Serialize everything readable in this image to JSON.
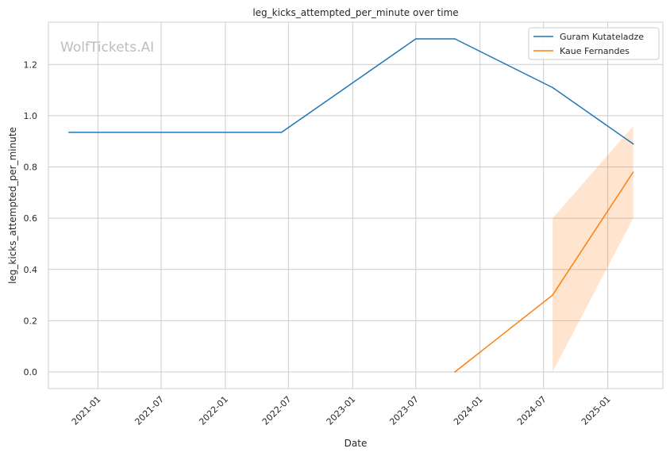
{
  "chart_data": {
    "type": "line",
    "title": "leg_kicks_attempted_per_minute over time",
    "xlabel": "Date",
    "ylabel": "leg_kicks_attempted_per_minute",
    "watermark": "WolfTickets.AI",
    "x_ticks": [
      "2021-01",
      "2021-07",
      "2022-01",
      "2022-07",
      "2023-01",
      "2023-07",
      "2024-01",
      "2024-07",
      "2025-01"
    ],
    "y_ticks": [
      "0.0",
      "0.2",
      "0.4",
      "0.6",
      "0.8",
      "1.0",
      "1.2"
    ],
    "xlim": [
      "2020-08-12",
      "2025-06-08"
    ],
    "ylim": [
      -0.065,
      1.365
    ],
    "grid": true,
    "legend_position": "top-right",
    "series": [
      {
        "name": "Guram Kutateladze",
        "color": "#1f77b4",
        "points": [
          {
            "x": "2020-10-10",
            "y": 0.935
          },
          {
            "x": "2022-06-11",
            "y": 0.935
          },
          {
            "x": "2023-07-01",
            "y": 1.3
          },
          {
            "x": "2023-10-21",
            "y": 1.3
          },
          {
            "x": "2024-07-27",
            "y": 1.11
          },
          {
            "x": "2025-03-15",
            "y": 0.89
          }
        ]
      },
      {
        "name": "Kaue Fernandes",
        "color": "#ff7f0e",
        "points": [
          {
            "x": "2023-10-21",
            "y": 0.0
          },
          {
            "x": "2024-07-27",
            "y": 0.3
          },
          {
            "x": "2025-03-15",
            "y": 0.78
          }
        ],
        "band": [
          {
            "x": "2024-07-27",
            "low": 0.0,
            "high": 0.6
          },
          {
            "x": "2025-03-15",
            "low": 0.6,
            "high": 0.96
          }
        ]
      }
    ]
  }
}
